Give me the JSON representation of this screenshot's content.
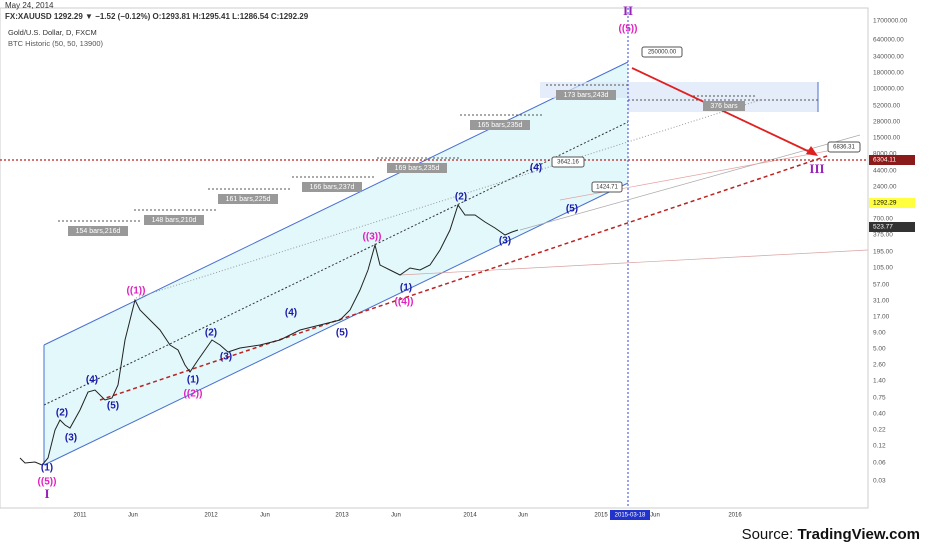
{
  "header": {
    "date": "May 24, 2014",
    "symbol_line": "FX:XAUUSD 1292.29 ▼ −1.52 (−0.12%) O:1293.81 H:1295.41 L:1286.54 C:1292.29",
    "instrument": "Gold/U.S. Dollar, D, FXCM",
    "indicator": "BTC Historic (50, 50, 13900)"
  },
  "price_axis": [
    "1700000.00",
    "640000.00",
    "340000.00",
    "180000.00",
    "100000.00",
    "52000.00",
    "28000.00",
    "15000.00",
    "8000.00",
    "6304.11",
    "4400.00",
    "2400.00",
    "1292.29",
    "700.00",
    "523.77",
    "375.00",
    "195.00",
    "105.00",
    "57.00",
    "31.00",
    "17.00",
    "9.00",
    "5.00",
    "2.60",
    "1.40",
    "0.75",
    "0.40",
    "0.22",
    "0.12",
    "0.06",
    "0.03"
  ],
  "time_axis": [
    "2011",
    "Jun",
    "2012",
    "Jun",
    "2013",
    "Jun",
    "2014",
    "Jun",
    "2015",
    "2015-03-18",
    "Jun",
    "2016"
  ],
  "bar_counts": [
    "154 bars,216d",
    "148 bars,210d",
    "161 bars,225d",
    "166 bars,237d",
    "169 bars,235d",
    "165 bars,235d",
    "173 bars,243d",
    "376 bars"
  ],
  "waves": [
    "(1)",
    "((5))",
    "I",
    "(2)",
    "(3)",
    "(4)",
    "(5)",
    "((1))",
    "(1)",
    "((2))",
    "(2)",
    "(3)",
    "(4)",
    "(5)",
    "((3))",
    "(1)",
    "((4))",
    "(2)",
    "(3)",
    "(4)",
    "(5)",
    "II",
    "((5))",
    "III"
  ],
  "callouts": [
    "250000.00",
    "3642.16",
    "1424.71",
    "6836.31"
  ],
  "source": {
    "prefix": "Source: ",
    "site": "TradingView.com"
  }
}
